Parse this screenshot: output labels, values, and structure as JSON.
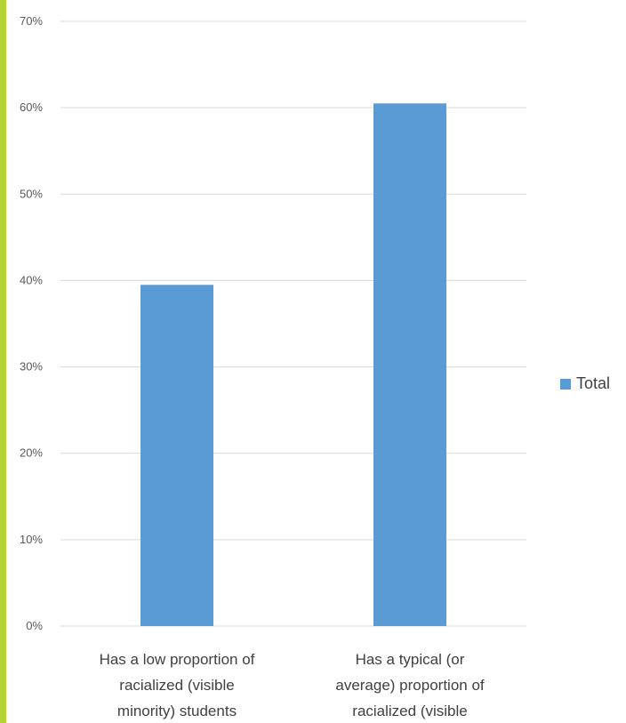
{
  "colors": {
    "accent_bar": "#b5d334",
    "series": "#5b9bd5",
    "gridline": "#d9d9d9",
    "background": "#ffffff"
  },
  "chart_data": {
    "type": "bar",
    "title": "",
    "xlabel": "",
    "ylabel": "",
    "ylim": [
      0,
      70
    ],
    "y_unit": "%",
    "y_ticks": [
      0,
      10,
      20,
      30,
      40,
      50,
      60,
      70
    ],
    "y_tick_labels": [
      "0%",
      "10%",
      "20%",
      "30%",
      "40%",
      "50%",
      "60%",
      "70%"
    ],
    "grid": true,
    "categories": [
      [
        "Has a low proportion of",
        "racialized (visible",
        "minority) students"
      ],
      [
        "Has a typical (or",
        "average) proportion of",
        "racialized (visible"
      ]
    ],
    "series": [
      {
        "name": "Total",
        "values": [
          39.5,
          60.5
        ]
      }
    ],
    "legend_position": "right"
  }
}
